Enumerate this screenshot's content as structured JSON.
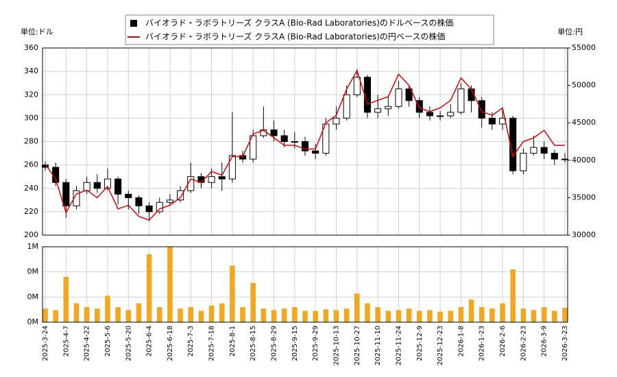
{
  "chart_data": [
    {
      "type": "candlestick",
      "y_unit_label": "単位:ドル",
      "y2_unit_label": "単位:円",
      "legend": "top",
      "grid": true,
      "ylim": [
        200,
        360
      ],
      "yticks": [
        200,
        220,
        240,
        260,
        280,
        300,
        320,
        340,
        360
      ],
      "y2lim": [
        30000,
        55000
      ],
      "y2ticks": [
        30000,
        35000,
        40000,
        45000,
        50000,
        55000
      ],
      "series": [
        {
          "name": "バイオラド・ラボラトリーズ クラスA (Bio-Rad Laboratories)のドルベースの株価",
          "color": "#000000",
          "open": [
            260,
            258,
            245,
            225,
            238,
            245,
            240,
            248,
            235,
            232,
            225,
            220,
            228,
            230,
            238,
            250,
            245,
            250,
            248,
            268,
            265,
            285,
            290,
            285,
            280,
            280,
            272,
            270,
            295,
            300,
            320,
            335,
            305,
            308,
            310,
            325,
            315,
            305,
            302,
            302,
            305,
            325,
            315,
            300,
            295,
            300,
            255,
            270,
            275,
            270,
            265
          ],
          "high": [
            263,
            262,
            248,
            242,
            250,
            252,
            257,
            250,
            238,
            234,
            228,
            232,
            235,
            242,
            262,
            253,
            257,
            262,
            305,
            272,
            290,
            310,
            298,
            290,
            288,
            284,
            278,
            300,
            310,
            328,
            342,
            337,
            320,
            318,
            332,
            328,
            318,
            310,
            306,
            312,
            330,
            328,
            318,
            305,
            308,
            302,
            274,
            285,
            280,
            273,
            270
          ],
          "low": [
            255,
            242,
            215,
            222,
            235,
            236,
            238,
            226,
            222,
            218,
            212,
            218,
            225,
            228,
            236,
            240,
            240,
            238,
            245,
            262,
            262,
            283,
            280,
            275,
            274,
            268,
            265,
            268,
            290,
            298,
            318,
            300,
            300,
            302,
            308,
            310,
            300,
            298,
            298,
            300,
            303,
            305,
            292,
            290,
            290,
            252,
            252,
            268,
            265,
            260,
            262
          ],
          "close": [
            258,
            245,
            225,
            238,
            245,
            240,
            248,
            235,
            232,
            225,
            220,
            228,
            230,
            238,
            250,
            245,
            250,
            248,
            268,
            265,
            285,
            290,
            285,
            280,
            280,
            272,
            270,
            295,
            300,
            320,
            335,
            305,
            308,
            310,
            325,
            315,
            305,
            302,
            302,
            305,
            325,
            315,
            300,
            295,
            300,
            255,
            270,
            275,
            270,
            265,
            265
          ]
        },
        {
          "name": "バイオラド・ラボラトリーズ クラスA (Bio-Rad Laboratories)の円ベースの株価",
          "color": "#e00000",
          "axis": "y2",
          "values": [
            39500,
            37500,
            33000,
            35500,
            36000,
            35000,
            36500,
            33500,
            34000,
            32500,
            32000,
            33500,
            34000,
            35000,
            37500,
            37000,
            38500,
            38000,
            40500,
            40500,
            43500,
            44000,
            43000,
            42000,
            42000,
            41500,
            41500,
            45000,
            46000,
            49500,
            52000,
            47500,
            48000,
            48500,
            51500,
            50000,
            47000,
            46500,
            47000,
            48000,
            51000,
            49500,
            46500,
            46000,
            47000,
            40500,
            42500,
            43000,
            44000,
            42000,
            42000
          ]
        }
      ]
    },
    {
      "type": "bar",
      "grid": true,
      "color": "#f0a820",
      "categories": [
        "2025-3-24",
        null,
        "2025-4-7",
        null,
        "2025-4-22",
        null,
        "2025-5-6",
        null,
        "2025-5-20",
        null,
        "2025-6-4",
        null,
        "2025-6-18",
        null,
        "2025-7-3",
        null,
        "2025-7-18",
        null,
        "2025-8-1",
        null,
        "2025-8-15",
        null,
        "2025-8-29",
        null,
        "2025-9-15",
        null,
        "2025-9-29",
        null,
        "2025-10-13",
        null,
        "2025-10-27",
        null,
        "2025-11-10",
        null,
        "2025-11-24",
        null,
        "2025-12-9",
        null,
        "2025-12-23",
        null,
        "2026-1-8",
        null,
        "2026-1-23",
        null,
        "2026-2-6",
        null,
        "2026-2-23",
        null,
        "2026-3-9",
        null,
        "2026-3-23"
      ],
      "values": [
        180000,
        160000,
        600000,
        250000,
        200000,
        180000,
        350000,
        200000,
        160000,
        250000,
        900000,
        200000,
        1000000,
        180000,
        200000,
        150000,
        220000,
        250000,
        750000,
        200000,
        520000,
        180000,
        160000,
        180000,
        200000,
        150000,
        150000,
        170000,
        160000,
        180000,
        380000,
        250000,
        200000,
        150000,
        160000,
        180000,
        150000,
        160000,
        140000,
        150000,
        200000,
        300000,
        200000,
        180000,
        250000,
        700000,
        180000,
        160000,
        200000,
        150000,
        190000
      ],
      "ylim": [
        0,
        1000000
      ],
      "yticks": [
        {
          "value": 0,
          "label": "0M"
        },
        {
          "value": 333333,
          "label": "0M"
        },
        {
          "value": 666667,
          "label": "0M"
        },
        {
          "value": 1000000,
          "label": "1M"
        }
      ]
    }
  ]
}
